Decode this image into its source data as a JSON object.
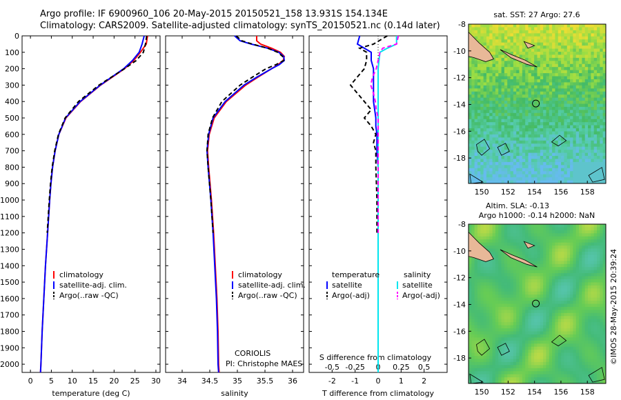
{
  "title_line1": "Argo profile: IF 6900960_106 20-May-2015 20150521_158 13.931S 154.134E",
  "title_line2": "Climatology: CARS2009. Satellite-adjusted climatology: synTS_20150521.nc (0.14d later)",
  "timestamp": "©IMOS 28-May-2015 20:39:24",
  "colors": {
    "climatology": "#ff0000",
    "satellite": "#0000ff",
    "argo": "#000000",
    "sat_salinity": "#00e5ee",
    "argo_salinity": "#ff00ff"
  },
  "chart_data": [
    {
      "type": "line",
      "panel": "temperature",
      "xlabel": "temperature (deg C)",
      "xlim": [
        -2,
        31
      ],
      "xticks": [
        0,
        5,
        10,
        15,
        20,
        25,
        30
      ],
      "ylim": [
        0,
        2050
      ],
      "yticks": [
        0,
        100,
        200,
        300,
        400,
        500,
        600,
        700,
        800,
        900,
        1000,
        1100,
        1200,
        1300,
        1400,
        1500,
        1600,
        1700,
        1800,
        1900,
        2000
      ],
      "depth": [
        0,
        50,
        100,
        150,
        200,
        300,
        400,
        500,
        600,
        700,
        800,
        900,
        1000,
        1200,
        1400,
        1600,
        1800,
        2000,
        2050
      ],
      "series": [
        {
          "name": "climatology",
          "color": "#ff0000",
          "values": [
            28.0,
            27.7,
            26.3,
            24.7,
            22.5,
            16.8,
            12.0,
            8.5,
            6.8,
            5.9,
            5.3,
            4.9,
            4.6,
            4.1,
            3.6,
            3.2,
            2.8,
            2.5,
            2.4
          ]
        },
        {
          "name": "satellite-adj. clim.",
          "color": "#0000ff",
          "values": [
            27.2,
            26.7,
            26.0,
            24.4,
            22.3,
            16.7,
            11.9,
            8.4,
            6.8,
            5.9,
            5.3,
            4.9,
            4.6,
            4.1,
            3.6,
            3.2,
            2.8,
            2.5,
            2.4
          ]
        },
        {
          "name": "Argo(..raw -QC)",
          "color": "#000000",
          "dash": true,
          "values": [
            27.8,
            27.5,
            27.0,
            25.3,
            22.5,
            16.4,
            11.5,
            8.3,
            6.7,
            5.8,
            5.2,
            4.8,
            4.5,
            4.0,
            null,
            null,
            null,
            null,
            null
          ]
        }
      ],
      "legend": [
        "climatology",
        "satellite-adj. clim.",
        "Argo(..raw -QC)"
      ]
    },
    {
      "type": "line",
      "panel": "salinity",
      "xlabel": "salinity",
      "xlim": [
        33.7,
        36.2
      ],
      "xticks": [
        34,
        34.5,
        35,
        35.5,
        36
      ],
      "depth": [
        0,
        30,
        50,
        75,
        100,
        125,
        150,
        175,
        200,
        250,
        300,
        400,
        500,
        600,
        700,
        800,
        1000,
        1200,
        1400,
        1600,
        1800,
        2000,
        2050
      ],
      "series": [
        {
          "name": "climatology",
          "color": "#ff0000",
          "values": [
            35.35,
            35.35,
            35.42,
            35.62,
            35.78,
            35.85,
            35.83,
            35.74,
            35.62,
            35.38,
            35.15,
            34.8,
            34.58,
            34.49,
            34.46,
            34.48,
            34.53,
            34.57,
            34.6,
            34.63,
            34.65,
            34.66,
            34.67
          ]
        },
        {
          "name": "satellite-adj. clim.",
          "color": "#0000ff",
          "values": [
            34.95,
            35.05,
            35.25,
            35.55,
            35.75,
            35.84,
            35.85,
            35.76,
            35.62,
            35.36,
            35.12,
            34.78,
            34.56,
            34.48,
            34.45,
            34.47,
            34.52,
            34.56,
            34.59,
            34.62,
            34.64,
            34.65,
            34.66
          ]
        },
        {
          "name": "Argo(..raw -QC)",
          "color": "#000000",
          "dash": true,
          "values": [
            34.98,
            35.08,
            35.27,
            35.55,
            35.73,
            35.82,
            35.84,
            35.7,
            35.52,
            35.28,
            35.05,
            34.72,
            34.55,
            34.47,
            34.45,
            34.47,
            34.52,
            34.56,
            null,
            null,
            null,
            null,
            null
          ]
        }
      ],
      "legend": [
        "climatology",
        "satellite-adj. clim.",
        "Argo(..raw -QC)"
      ],
      "annotations": [
        "CORIOLIS",
        "PI: Christophe MAES"
      ]
    },
    {
      "type": "line",
      "panel": "difference",
      "xlabel": "T difference from climatology",
      "xlabel_top": "S difference from climatology",
      "xlim": [
        -3,
        3
      ],
      "xticks": [
        -2,
        -1,
        0,
        1,
        2
      ],
      "xticks_top": [
        -0.5,
        -0.25,
        0,
        0.25,
        0.5
      ],
      "depth": [
        0,
        50,
        75,
        100,
        150,
        200,
        250,
        300,
        350,
        400,
        450,
        500,
        550,
        600,
        650,
        700,
        800,
        1000,
        1200,
        1500,
        1800,
        2000,
        2050
      ],
      "series": [
        {
          "name": "temperature satellite",
          "color": "#0000ff",
          "values": [
            -0.8,
            -0.9,
            -0.6,
            -0.3,
            -0.3,
            -0.2,
            -0.2,
            -0.2,
            -0.2,
            -0.2,
            -0.15,
            -0.1,
            -0.1,
            -0.05,
            -0.05,
            -0.05,
            0,
            0,
            0,
            0,
            0,
            0,
            0
          ]
        },
        {
          "name": "temperature Argo(-adj)",
          "color": "#000000",
          "dash": true,
          "values": [
            0.4,
            -0.2,
            -0.8,
            -0.5,
            -0.5,
            -0.6,
            -0.9,
            -1.2,
            -0.9,
            -0.6,
            -0.3,
            -0.6,
            -0.3,
            -0.1,
            -0.2,
            -0.1,
            -0.1,
            -0.05,
            -0.05,
            null,
            null,
            null,
            null
          ]
        },
        {
          "name": "salinity satellite",
          "color": "#00e5ee",
          "values": [
            0.2,
            0.2,
            0.1,
            0.02,
            0.01,
            0.0,
            0.0,
            0.0,
            0.0,
            0.0,
            0.0,
            0.0,
            0.0,
            0.0,
            0.0,
            0.0,
            0.0,
            0.0,
            0.0,
            0.0,
            0.0,
            0.0,
            0.0
          ]
        },
        {
          "name": "salinity Argo(-adj)",
          "color": "#ff00ff",
          "dash": true,
          "values": [
            0.22,
            0.2,
            0.05,
            0.02,
            0.0,
            -0.02,
            -0.06,
            -0.08,
            -0.05,
            -0.03,
            -0.02,
            0.0,
            0.0,
            0.0,
            0.0,
            0.0,
            0.0,
            0.0,
            0.0,
            null,
            null,
            null,
            null
          ]
        }
      ],
      "legend_left_title": "temperature",
      "legend_right_title": "salinity",
      "legend_left": [
        "satellite",
        "Argo(-adj)"
      ],
      "legend_right": [
        "satellite",
        "Argo(-adj)"
      ]
    },
    {
      "type": "heatmap",
      "panel": "sst_map",
      "title": "sat. SST: 27 Argo: 27.6",
      "xlim": [
        149,
        159.4
      ],
      "ylim": [
        -19.9,
        -8
      ],
      "xticks": [
        150,
        152,
        154,
        156,
        158
      ],
      "yticks": [
        -8,
        -10,
        -12,
        -14,
        -16,
        -18
      ],
      "marker": {
        "lon": 154.1,
        "lat": -13.93
      }
    },
    {
      "type": "heatmap",
      "panel": "sla_map",
      "title_line1": "Altim. SLA: -0.13",
      "title_line2": "Argo h1000: -0.14 h2000: NaN",
      "xlim": [
        149,
        159.4
      ],
      "ylim": [
        -19.9,
        -8
      ],
      "xticks": [
        150,
        152,
        154,
        156,
        158
      ],
      "yticks": [
        -8,
        -10,
        -12,
        -14,
        -16,
        -18
      ],
      "marker": {
        "lon": 154.1,
        "lat": -13.93
      }
    }
  ]
}
